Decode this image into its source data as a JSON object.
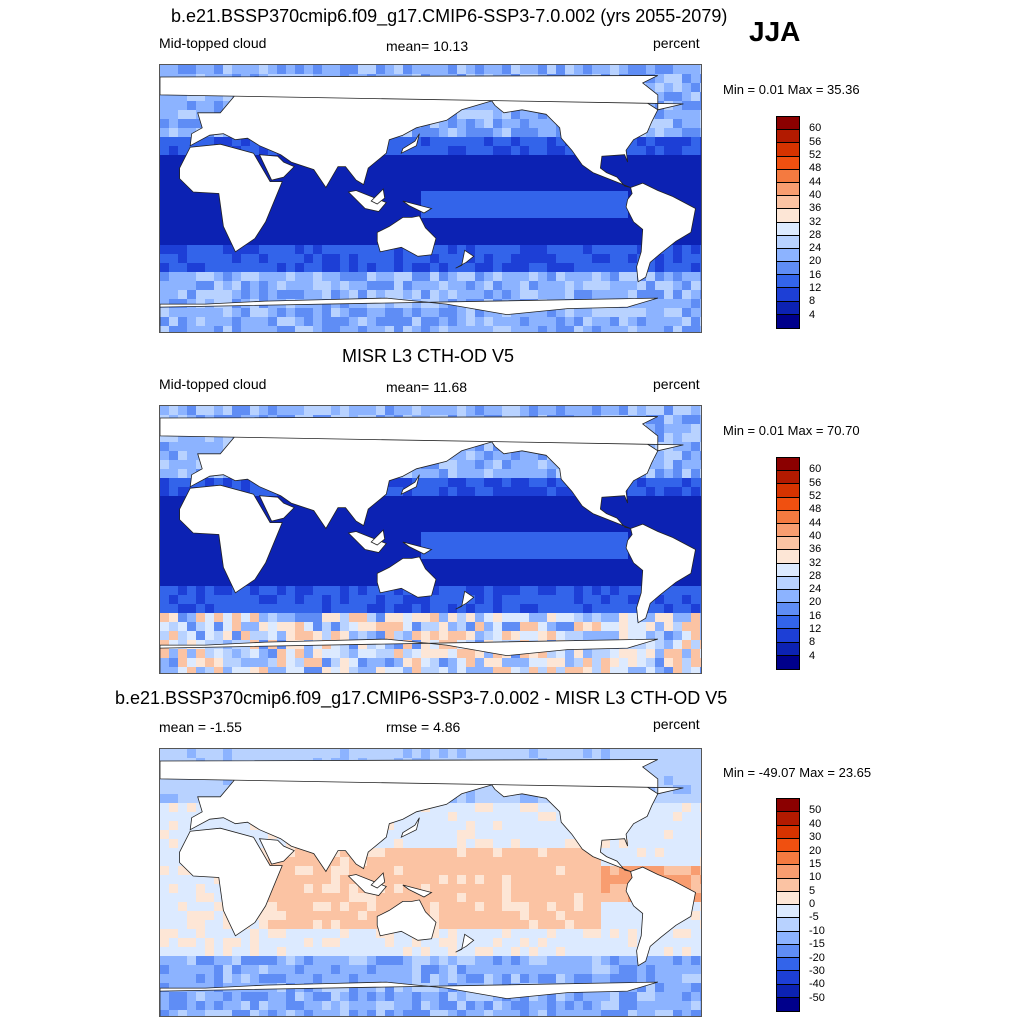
{
  "season": "JJA",
  "colors": {
    "land": "#ffffff",
    "coast": "#222222"
  },
  "panels": [
    {
      "title": "b.e21.BSSP370cmip6.f09_g17.CMIP6-SSP3-7.0.002 (yrs 2055-2079)",
      "left_label": "Mid-topped cloud",
      "center_label": "mean=  10.13",
      "right_label": "percent",
      "minmax": "Min =   0.01 Max =  35.36",
      "colorbar": {
        "ticks": [
          "60",
          "56",
          "52",
          "48",
          "44",
          "40",
          "36",
          "32",
          "28",
          "24",
          "20",
          "16",
          "12",
          "8",
          "4"
        ],
        "colors": [
          "#8b0000",
          "#b21a00",
          "#d63300",
          "#f05010",
          "#f47a40",
          "#f89d70",
          "#fbc3a3",
          "#fde6d6",
          "#dceaff",
          "#b8d2ff",
          "#8cb3ff",
          "#5f8df5",
          "#3364ea",
          "#1d3fd6",
          "#0c22b3",
          "#00008b"
        ]
      },
      "field": "seq"
    },
    {
      "title": "MISR L3 CTH-OD V5",
      "left_label": "Mid-topped cloud",
      "center_label": "mean=  11.68",
      "right_label": "percent",
      "minmax": "Min =   0.01 Max =  70.70",
      "colorbar": {
        "ticks": [
          "60",
          "56",
          "52",
          "48",
          "44",
          "40",
          "36",
          "32",
          "28",
          "24",
          "20",
          "16",
          "12",
          "8",
          "4"
        ],
        "colors": [
          "#8b0000",
          "#b21a00",
          "#d63300",
          "#f05010",
          "#f47a40",
          "#f89d70",
          "#fbc3a3",
          "#fde6d6",
          "#dceaff",
          "#b8d2ff",
          "#8cb3ff",
          "#5f8df5",
          "#3364ea",
          "#1d3fd6",
          "#0c22b3",
          "#00008b"
        ]
      },
      "field": "obs"
    },
    {
      "title": "b.e21.BSSP370cmip6.f09_g17.CMIP6-SSP3-7.0.002 - MISR L3 CTH-OD V5",
      "left_label": "mean =  -1.55",
      "center_label": "rmse =   4.86",
      "right_label": "percent",
      "minmax": "Min = -49.07 Max =  23.65",
      "colorbar": {
        "ticks": [
          "50",
          "40",
          "30",
          "20",
          "15",
          "10",
          "5",
          "0",
          "-5",
          "-10",
          "-15",
          "-20",
          "-30",
          "-40",
          "-50"
        ],
        "colors": [
          "#8b0000",
          "#b21a00",
          "#d63300",
          "#f05010",
          "#f47a40",
          "#f89d70",
          "#fbc3a3",
          "#fde6d6",
          "#dceaff",
          "#b8d2ff",
          "#8cb3ff",
          "#5f8df5",
          "#3364ea",
          "#1d3fd6",
          "#0c22b3",
          "#00008b"
        ]
      },
      "field": "diff"
    }
  ]
}
